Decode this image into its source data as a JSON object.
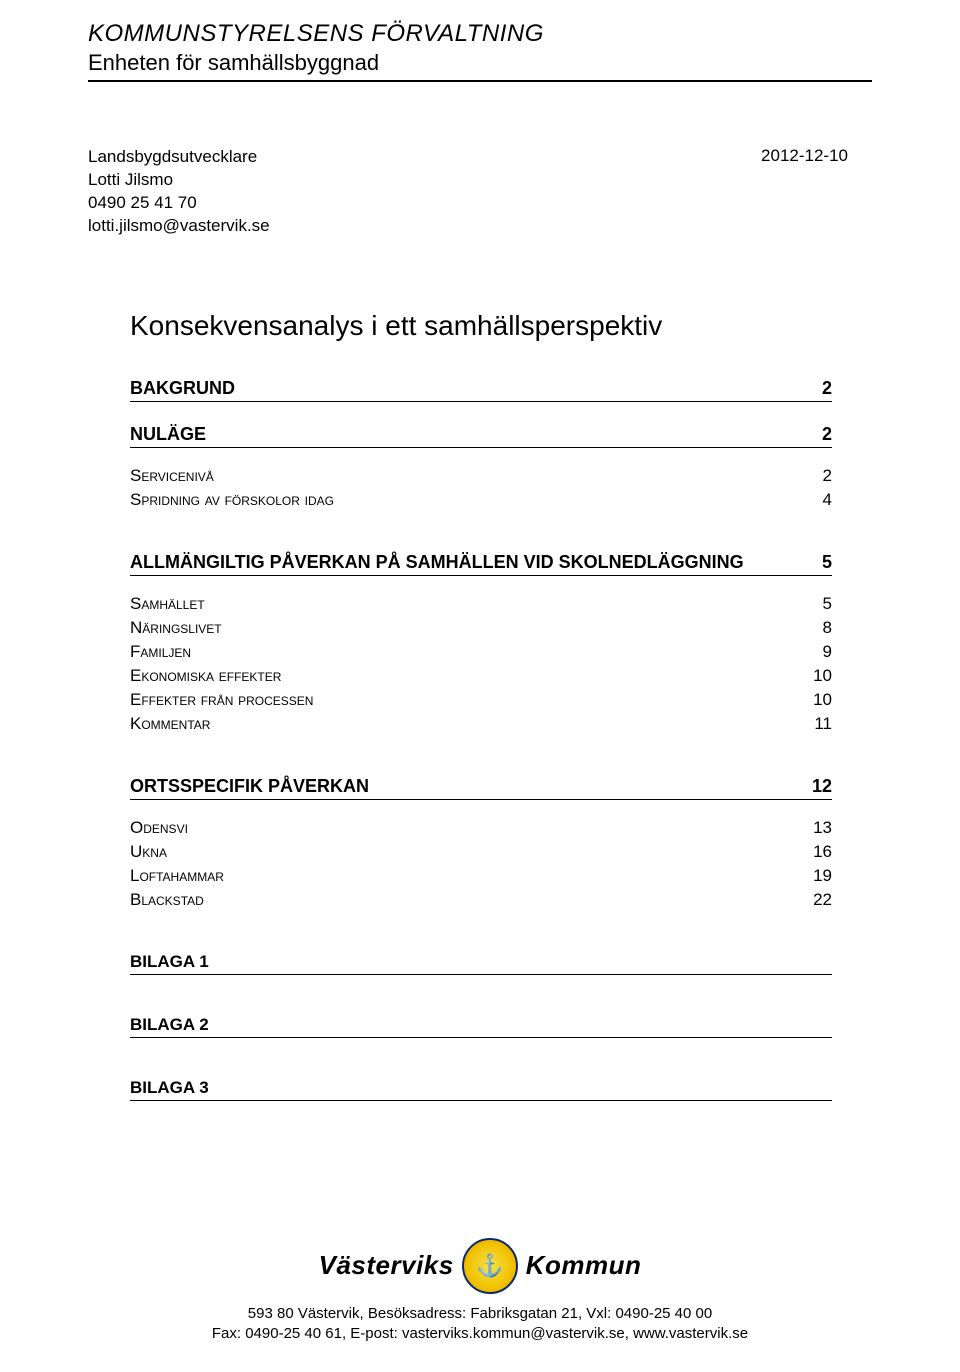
{
  "header": {
    "title": "KOMMUNSTYRELSENS FÖRVALTNING",
    "subtitle": "Enheten för samhällsbyggnad"
  },
  "meta": {
    "role": "Landsbygdsutvecklare",
    "name": "Lotti Jilsmo",
    "phone": "0490 25 41 70",
    "email": "lotti.jilsmo@vastervik.se",
    "date": "2012-12-10"
  },
  "document_title": "Konsekvensanalys i ett samhällsperspektiv",
  "toc": [
    {
      "label": "BAKGRUND",
      "page": "2",
      "level": "h1"
    },
    {
      "label": "NULÄGE",
      "page": "2",
      "level": "h1"
    },
    {
      "label": "Servicenivå",
      "page": "2",
      "level": "h2"
    },
    {
      "label": "Spridning av förskolor idag",
      "page": "4",
      "level": "h2"
    },
    {
      "gap": true
    },
    {
      "label": "ALLMÄNGILTIG PÅVERKAN PÅ SAMHÄLLEN VID SKOLNEDLÄGGNING",
      "page": "5",
      "level": "h1"
    },
    {
      "label": "Samhället",
      "page": "5",
      "level": "h2"
    },
    {
      "label": "Näringslivet",
      "page": "8",
      "level": "h2"
    },
    {
      "label": "Familjen",
      "page": "9",
      "level": "h2"
    },
    {
      "label": "Ekonomiska effekter",
      "page": "10",
      "level": "h2"
    },
    {
      "label": "Effekter från processen",
      "page": "10",
      "level": "h2"
    },
    {
      "label": "Kommentar",
      "page": "11",
      "level": "h2"
    },
    {
      "gap": true
    },
    {
      "label": "ORTSSPECIFIK PÅVERKAN",
      "page": "12",
      "level": "h1"
    },
    {
      "label": "Odensvi",
      "page": "13",
      "level": "h2"
    },
    {
      "label": "Ukna",
      "page": "16",
      "level": "h2"
    },
    {
      "label": "Loftahammar",
      "page": "19",
      "level": "h2"
    },
    {
      "label": "Blackstad",
      "page": "22",
      "level": "h2"
    },
    {
      "gap": true
    },
    {
      "label": "BILAGA 1",
      "page": "",
      "level": "h3"
    },
    {
      "gap": true
    },
    {
      "label": "BILAGA 2",
      "page": "",
      "level": "h3"
    },
    {
      "gap": true
    },
    {
      "label": "BILAGA 3",
      "page": "",
      "level": "h3"
    }
  ],
  "footer": {
    "brand_left": "Västerviks",
    "brand_right": "Kommun",
    "line1": "593 80 Västervik, Besöksadress: Fabriksgatan 21, Vxl: 0490-25 40 00",
    "line2": "Fax: 0490-25 40 61, E-post: vasterviks.kommun@vastervik.se, www.vastervik.se"
  },
  "colors": {
    "text": "#000000",
    "background": "#ffffff",
    "rule": "#000000",
    "logo_outer": "#0a2a6b",
    "logo_fill_a": "#f7e04a",
    "logo_fill_b": "#f2c200",
    "logo_fill_c": "#d99a00"
  }
}
